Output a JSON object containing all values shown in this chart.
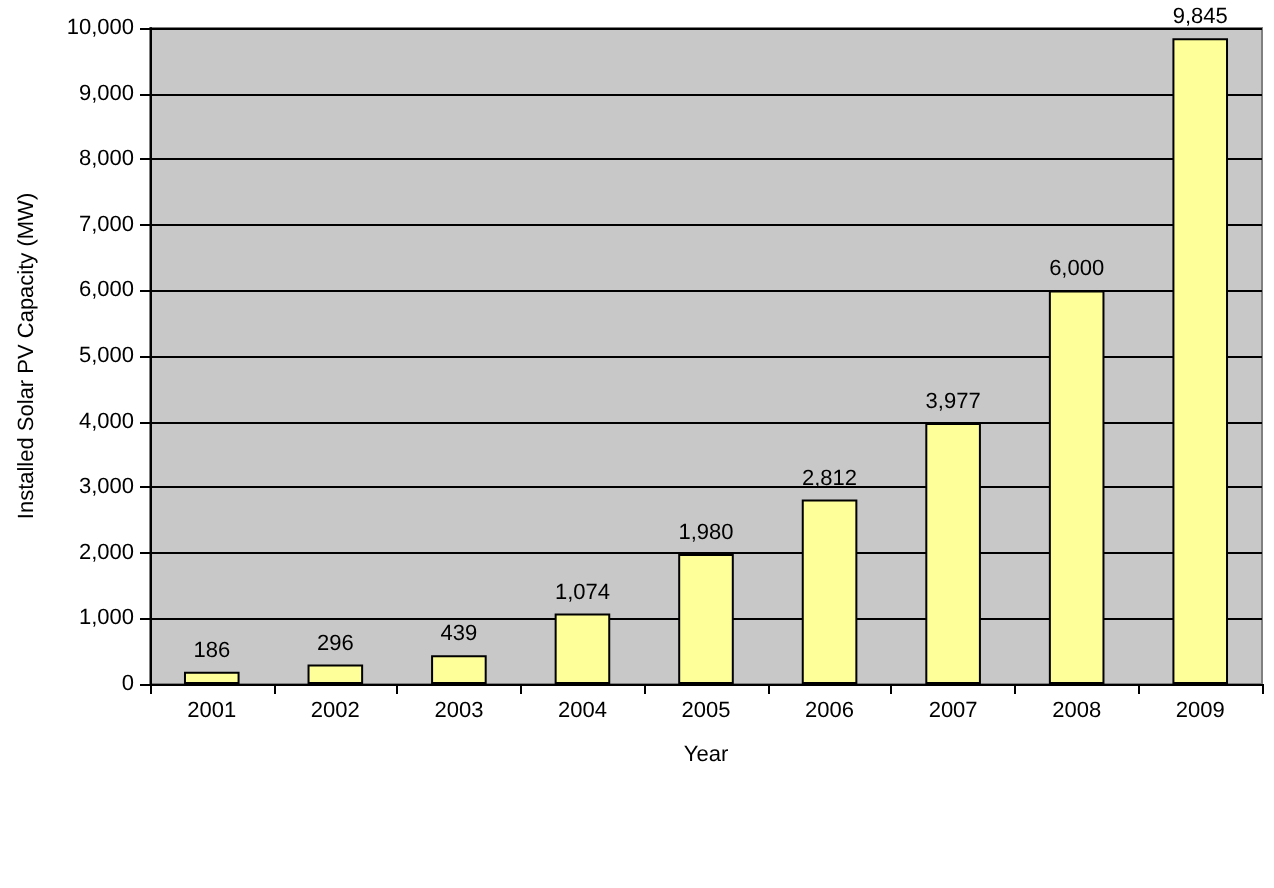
{
  "chart_data": {
    "type": "bar",
    "xlabel": "Year",
    "ylabel": "Installed Solar PV Capacity (MW)",
    "categories": [
      "2001",
      "2002",
      "2003",
      "2004",
      "2005",
      "2006",
      "2007",
      "2008",
      "2009"
    ],
    "values": [
      186,
      296,
      439,
      1074,
      1980,
      2812,
      3977,
      6000,
      9845
    ],
    "value_labels": [
      "186",
      "296",
      "439",
      "1,074",
      "1,980",
      "2,812",
      "3,977",
      "6,000",
      "9,845"
    ],
    "color": "#ffff99",
    "ylim": [
      0,
      10000
    ],
    "yticks": [
      {
        "value": 0,
        "label": "0"
      },
      {
        "value": 1000,
        "label": "1,000"
      },
      {
        "value": 2000,
        "label": "2,000"
      },
      {
        "value": 3000,
        "label": "3,000"
      },
      {
        "value": 4000,
        "label": "4,000"
      },
      {
        "value": 5000,
        "label": "5,000"
      },
      {
        "value": 6000,
        "label": "6,000"
      },
      {
        "value": 7000,
        "label": "7,000"
      },
      {
        "value": 8000,
        "label": "8,000"
      },
      {
        "value": 9000,
        "label": "9,000"
      },
      {
        "value": 10000,
        "label": "10,000"
      }
    ],
    "grid": "y"
  }
}
